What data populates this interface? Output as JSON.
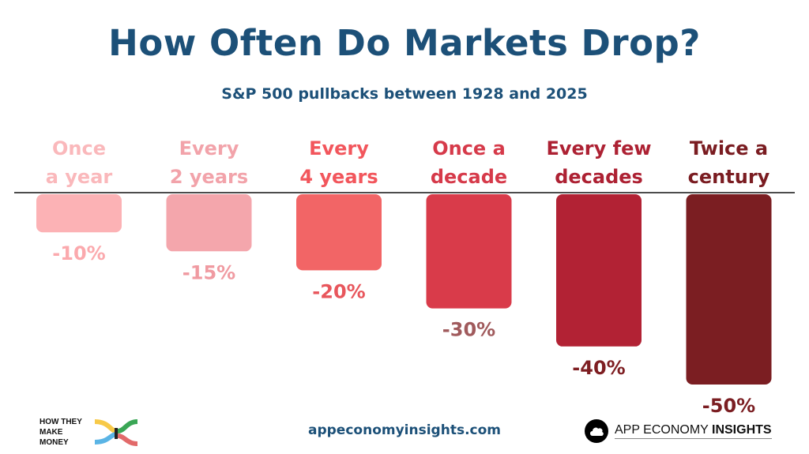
{
  "title": "How Often Do Markets Drop?",
  "subtitle": "S&P 500 pullbacks between 1928 and 2025",
  "chart_data": {
    "type": "bar",
    "orientation": "downward",
    "title": "How Often Do Markets Drop?",
    "subtitle": "S&P 500 pullbacks between 1928 and 2025",
    "categories": [
      [
        "Once",
        "a year"
      ],
      [
        "Every",
        "2 years"
      ],
      [
        "Every",
        "4 years"
      ],
      [
        "Once a",
        "decade"
      ],
      [
        "Every few",
        "decades"
      ],
      [
        "Twice a",
        "century"
      ]
    ],
    "values": [
      -10,
      -15,
      -20,
      -30,
      -40,
      -50
    ],
    "value_labels": [
      "-10%",
      "-15%",
      "-20%",
      "-30%",
      "-40%",
      "-50%"
    ],
    "ylim": [
      -50,
      0
    ],
    "bar_colors": [
      "#fcb2b5",
      "#f4a6ac",
      "#f26566",
      "#d93b4a",
      "#b22234",
      "#7b1e22"
    ],
    "label_colors": [
      "#fab8bb",
      "#f2a3aa",
      "#f2565c",
      "#d63a4a",
      "#ad2133",
      "#7a1c21"
    ],
    "value_label_colors": [
      "#fba9ad",
      "#f09aa1",
      "#e8565c",
      "#a05a5c",
      "#7e1e22",
      "#7b1e22"
    ]
  },
  "footer": {
    "left_brand_line1": "HOW THEY",
    "left_brand_line2": "MAKE MONEY",
    "website": "appeconomyinsights.com",
    "right_brand_regular": "APP ECONOMY ",
    "right_brand_bold": "INSIGHTS"
  }
}
